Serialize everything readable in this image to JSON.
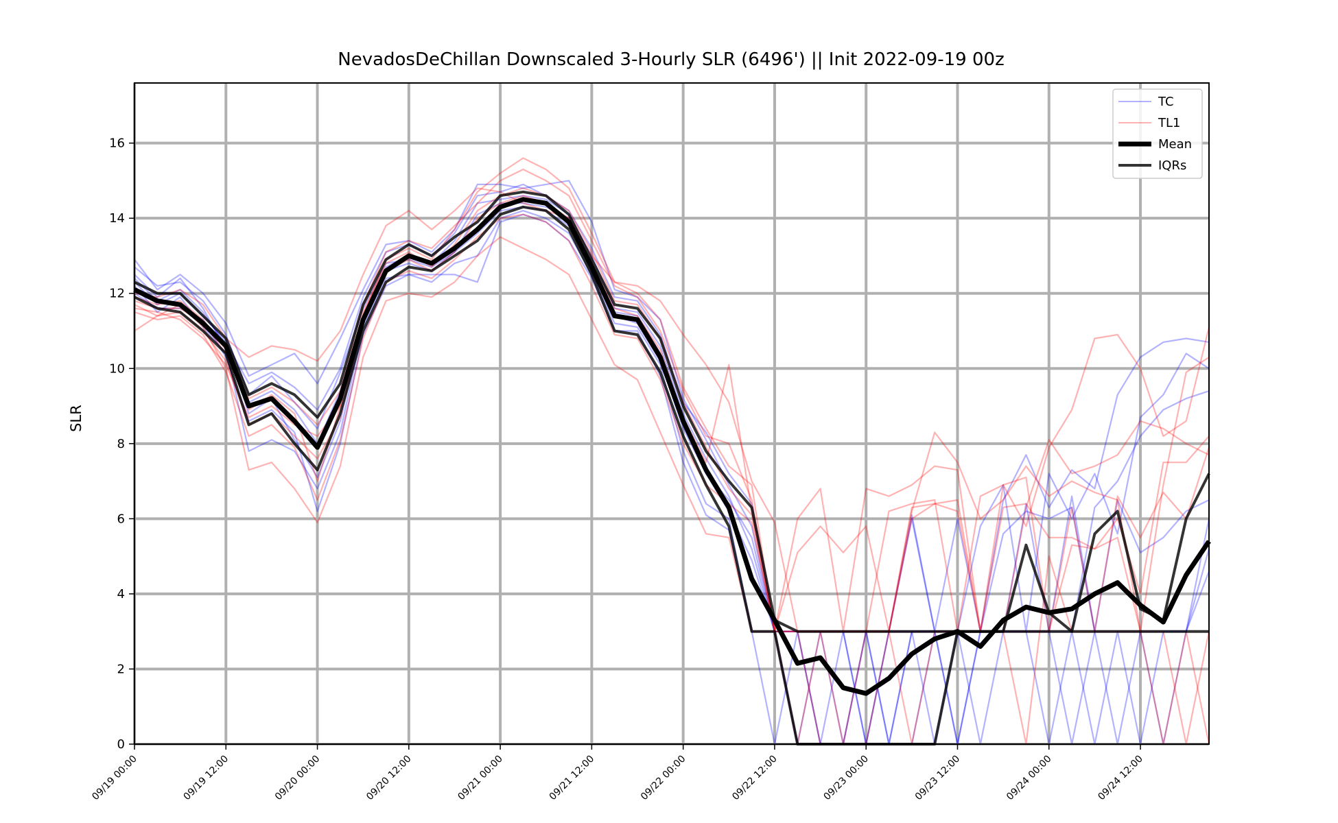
{
  "chart_data": {
    "type": "line",
    "title": "NevadosDeChillan Downscaled 3-Hourly SLR (6496') || Init 2022-09-19 00z",
    "xlabel": "",
    "ylabel": "SLR",
    "ylim": [
      0,
      17.6
    ],
    "yticks": [
      "0",
      "2",
      "4",
      "6",
      "8",
      "10",
      "12",
      "14",
      "16"
    ],
    "x_start": "09/19 00:00",
    "x_step_hours": 3,
    "xticks": [
      "09/19 00:00",
      "09/19 12:00",
      "09/20 00:00",
      "09/20 12:00",
      "09/21 00:00",
      "09/21 12:00",
      "09/22 00:00",
      "09/22 12:00",
      "09/23 00:00",
      "09/23 12:00",
      "09/24 00:00",
      "09/24 12:00"
    ],
    "grid": true,
    "legend_position": "top-right",
    "legend": [
      {
        "label": "TC",
        "color": "#0000ff",
        "alpha": 0.3,
        "width": 2
      },
      {
        "label": "TL1",
        "color": "#ff0000",
        "alpha": 0.3,
        "width": 2
      },
      {
        "label": "Mean",
        "color": "#000000",
        "alpha": 1,
        "width": 7
      },
      {
        "label": "IQRs",
        "color": "#000000",
        "alpha": 0.8,
        "width": 4
      }
    ],
    "series": [
      {
        "name": "Mean",
        "color": "#000000",
        "values": [
          12.1,
          11.8,
          11.7,
          11.2,
          10.6,
          9.0,
          9.2,
          8.6,
          7.9,
          9.2,
          11.3,
          12.6,
          13.0,
          12.8,
          13.2,
          13.7,
          14.3,
          14.5,
          14.4,
          13.9,
          12.7,
          11.4,
          11.3,
          10.3,
          8.6,
          7.3,
          6.3,
          4.4,
          3.3,
          2.15,
          2.3,
          1.5,
          1.35,
          1.75,
          2.4,
          2.8,
          3.0,
          2.6,
          3.3,
          3.65,
          3.5,
          3.6,
          4.0,
          4.3,
          3.7,
          3.25,
          4.5,
          5.4
        ]
      },
      {
        "name": "IQR upper",
        "color": "#000000",
        "values": [
          12.3,
          12.0,
          12.0,
          11.4,
          10.8,
          9.3,
          9.6,
          9.3,
          8.7,
          9.6,
          11.7,
          12.9,
          13.3,
          13.0,
          13.5,
          13.9,
          14.6,
          14.7,
          14.6,
          14.1,
          12.9,
          11.7,
          11.6,
          10.8,
          9.0,
          7.8,
          7.0,
          6.3,
          3.3,
          3.0,
          3.0,
          3.0,
          3.0,
          3.0,
          3.0,
          3.0,
          3.0,
          3.0,
          3.0,
          5.3,
          3.5,
          3.0,
          5.6,
          6.2,
          3.6,
          3.3,
          6.0,
          7.2
        ]
      },
      {
        "name": "IQR lower",
        "color": "#000000",
        "values": [
          11.9,
          11.6,
          11.5,
          11.0,
          10.4,
          8.5,
          8.8,
          8.0,
          7.3,
          8.8,
          11.0,
          12.3,
          12.7,
          12.6,
          13.0,
          13.4,
          14.1,
          14.3,
          14.2,
          13.7,
          12.5,
          11.0,
          10.9,
          9.9,
          8.2,
          6.9,
          5.8,
          3.0,
          3.0,
          0.0,
          0.0,
          0.0,
          0.0,
          0.0,
          0.0,
          0.0,
          3.0,
          3.0,
          3.0,
          3.0,
          3.0,
          3.0,
          3.0,
          3.0,
          3.0,
          3.0,
          3.0,
          3.0
        ]
      },
      {
        "name": "TC",
        "color": "#0000ff",
        "values": [
          12.9,
          12.1,
          12.5,
          12.0,
          11.2,
          9.8,
          10.1,
          10.4,
          9.6,
          10.8,
          12.1,
          13.3,
          13.4,
          13.1,
          13.7,
          14.9,
          14.9,
          14.8,
          14.9,
          15.0,
          13.9,
          12.1,
          11.9,
          11.3,
          9.2,
          8.1,
          6.9,
          5.8,
          3.0,
          3.0,
          3.0,
          0.0,
          3.0,
          3.0,
          6.0,
          3.0,
          6.0,
          3.0,
          6.5,
          7.7,
          6.3,
          7.3,
          6.8,
          9.3,
          10.3,
          10.7,
          10.8,
          10.7
        ]
      },
      {
        "name": "TC",
        "color": "#0000ff",
        "values": [
          12.7,
          12.2,
          12.3,
          11.8,
          10.9,
          9.3,
          9.8,
          9.1,
          8.4,
          9.9,
          11.6,
          12.8,
          12.9,
          12.7,
          13.1,
          14.1,
          14.4,
          14.4,
          14.3,
          14.0,
          12.8,
          11.5,
          11.4,
          10.4,
          8.6,
          7.2,
          6.2,
          4.9,
          3.0,
          0.0,
          0.0,
          3.0,
          3.0,
          3.0,
          6.1,
          3.0,
          3.0,
          5.8,
          6.9,
          3.0,
          7.2,
          6.0,
          7.2,
          5.6,
          8.7,
          9.3,
          10.4,
          10.0
        ]
      },
      {
        "name": "TC",
        "color": "#0000ff",
        "values": [
          12.5,
          11.9,
          12.4,
          11.6,
          10.5,
          7.8,
          8.1,
          7.8,
          6.8,
          8.3,
          11.1,
          12.4,
          12.5,
          12.5,
          12.5,
          12.3,
          13.9,
          14.1,
          13.9,
          13.4,
          12.4,
          11.0,
          11.0,
          9.8,
          7.5,
          6.1,
          5.7,
          3.0,
          0.0,
          3.0,
          0.0,
          0.0,
          3.0,
          0.0,
          3.0,
          3.0,
          0.0,
          3.0,
          3.0,
          3.0,
          0.0,
          3.0,
          0.0,
          3.0,
          0.0,
          3.0,
          3.0,
          6.0
        ]
      },
      {
        "name": "TC",
        "color": "#0000ff",
        "values": [
          12.3,
          11.7,
          12.0,
          11.4,
          10.7,
          9.6,
          9.9,
          9.5,
          8.9,
          10.0,
          11.9,
          13.1,
          13.3,
          13.0,
          13.6,
          14.6,
          14.7,
          14.9,
          14.6,
          14.2,
          13.2,
          11.9,
          11.8,
          10.9,
          9.1,
          8.3,
          7.2,
          6.4,
          3.0,
          3.0,
          3.0,
          3.0,
          0.0,
          3.0,
          3.0,
          3.0,
          0.0,
          3.0,
          3.0,
          6.4,
          3.0,
          3.0,
          6.3,
          7.0,
          8.2,
          8.9,
          9.2,
          9.4
        ]
      },
      {
        "name": "TC",
        "color": "#0000ff",
        "values": [
          12.2,
          11.5,
          11.9,
          11.1,
          10.4,
          9.1,
          9.4,
          8.9,
          8.0,
          9.4,
          11.4,
          12.6,
          12.8,
          12.6,
          13.1,
          13.6,
          14.2,
          14.3,
          14.2,
          13.8,
          12.6,
          11.4,
          11.2,
          10.2,
          8.4,
          7.2,
          6.5,
          5.5,
          3.0,
          3.0,
          0.0,
          0.0,
          0.0,
          3.0,
          3.0,
          0.0,
          3.0,
          3.0,
          3.0,
          3.0,
          3.0,
          0.0,
          3.0,
          3.0,
          3.0,
          0.0,
          3.0,
          5.2
        ]
      },
      {
        "name": "TC",
        "color": "#0000ff",
        "values": [
          12.0,
          11.6,
          11.6,
          11.3,
          10.3,
          8.6,
          8.9,
          8.3,
          6.2,
          8.0,
          10.9,
          12.2,
          12.5,
          12.3,
          12.8,
          13.0,
          14.0,
          14.2,
          14.0,
          13.6,
          12.5,
          11.2,
          11.1,
          10.1,
          7.8,
          6.4,
          6.0,
          3.0,
          3.0,
          3.0,
          3.0,
          3.0,
          3.0,
          0.0,
          3.0,
          3.0,
          3.0,
          0.0,
          3.0,
          3.0,
          3.0,
          6.6,
          3.0,
          0.0,
          3.0,
          3.0,
          3.0,
          4.6
        ]
      },
      {
        "name": "TC",
        "color": "#0000ff",
        "values": [
          12.4,
          11.8,
          12.1,
          11.5,
          10.6,
          8.8,
          9.2,
          8.1,
          7.1,
          8.6,
          11.2,
          12.7,
          13.0,
          12.8,
          13.4,
          14.4,
          14.5,
          14.6,
          14.5,
          14.1,
          13.0,
          11.6,
          11.5,
          10.6,
          8.8,
          7.6,
          6.6,
          5.2,
          3.0,
          0.0,
          3.0,
          3.0,
          0.0,
          0.0,
          0.0,
          3.0,
          3.0,
          3.0,
          5.6,
          6.2,
          6.0,
          6.3,
          3.0,
          6.5,
          5.1,
          5.5,
          6.2,
          6.5
        ]
      },
      {
        "name": "TL1",
        "color": "#ff0000",
        "values": [
          11.0,
          11.4,
          11.7,
          11.1,
          10.0,
          7.3,
          7.5,
          6.8,
          5.9,
          7.4,
          10.3,
          11.8,
          12.0,
          11.9,
          12.3,
          13.0,
          13.5,
          13.2,
          12.9,
          12.5,
          11.3,
          10.1,
          9.7,
          8.3,
          6.9,
          5.6,
          5.5,
          3.0,
          3.0,
          5.1,
          5.8,
          5.1,
          5.8,
          3.0,
          6.3,
          6.4,
          6.5,
          3.0,
          6.9,
          5.8,
          7.9,
          8.9,
          10.8,
          10.9,
          10.0,
          8.2,
          8.6,
          11.1
        ]
      },
      {
        "name": "TL1",
        "color": "#ff0000",
        "values": [
          11.5,
          11.3,
          11.4,
          10.9,
          9.9,
          8.2,
          8.5,
          7.9,
          6.5,
          8.1,
          10.8,
          12.3,
          12.6,
          12.4,
          12.9,
          13.5,
          14.0,
          14.1,
          13.9,
          13.4,
          12.2,
          10.9,
          10.8,
          9.7,
          8.0,
          6.9,
          6.4,
          5.9,
          3.0,
          6.0,
          6.8,
          3.0,
          6.8,
          6.6,
          6.9,
          7.4,
          7.3,
          3.0,
          6.3,
          6.4,
          5.5,
          5.5,
          5.2,
          6.0,
          4.0,
          7.5,
          7.5,
          8.2
        ]
      },
      {
        "name": "TL1",
        "color": "#ff0000",
        "values": [
          11.6,
          11.5,
          11.3,
          10.8,
          10.1,
          8.7,
          9.0,
          8.5,
          8.2,
          9.0,
          11.4,
          12.9,
          13.2,
          12.9,
          13.7,
          14.7,
          15.2,
          15.6,
          15.3,
          14.8,
          13.6,
          12.3,
          12.0,
          11.3,
          9.5,
          8.4,
          7.4,
          6.9,
          3.0,
          3.0,
          0.0,
          0.0,
          3.0,
          6.2,
          6.4,
          6.5,
          3.0,
          6.6,
          6.9,
          7.1,
          3.0,
          5.3,
          5.2,
          5.5,
          3.0,
          0.0,
          3.0,
          0.0
        ]
      },
      {
        "name": "TL1",
        "color": "#ff0000",
        "values": [
          11.8,
          11.6,
          11.6,
          11.2,
          10.4,
          9.2,
          9.5,
          9.1,
          8.5,
          9.4,
          11.7,
          13.1,
          13.4,
          13.2,
          13.8,
          14.4,
          15.0,
          15.3,
          15.0,
          14.6,
          13.4,
          12.2,
          11.9,
          11.0,
          9.4,
          8.2,
          8.0,
          6.5,
          3.0,
          3.0,
          3.0,
          3.0,
          3.0,
          3.0,
          6.2,
          8.3,
          7.5,
          6.0,
          6.5,
          7.4,
          6.6,
          7.0,
          6.7,
          6.5,
          3.0,
          6.9,
          9.9,
          10.3
        ]
      },
      {
        "name": "TL1",
        "color": "#ff0000",
        "values": [
          12.0,
          11.9,
          12.1,
          11.7,
          10.8,
          10.3,
          10.6,
          10.5,
          10.2,
          11.0,
          12.5,
          13.8,
          14.2,
          13.7,
          14.2,
          14.8,
          14.7,
          14.4,
          14.2,
          14.0,
          13.0,
          12.3,
          12.2,
          11.8,
          10.9,
          10.1,
          9.1,
          7.0,
          5.9,
          3.0,
          3.0,
          3.0,
          3.0,
          3.0,
          6.0,
          6.4,
          6.2,
          3.0,
          3.0,
          6.3,
          8.1,
          7.2,
          7.4,
          7.7,
          8.6,
          8.4,
          8.0,
          7.7
        ]
      },
      {
        "name": "TL1",
        "color": "#ff0000",
        "values": [
          11.7,
          11.4,
          11.5,
          11.0,
          10.2,
          8.5,
          8.8,
          8.2,
          7.6,
          8.7,
          11.3,
          12.6,
          12.9,
          12.6,
          13.1,
          14.0,
          14.4,
          14.6,
          14.4,
          14.0,
          12.8,
          11.6,
          11.4,
          10.5,
          8.7,
          7.5,
          10.1,
          6.2,
          3.0,
          0.0,
          3.0,
          0.0,
          0.0,
          3.0,
          3.0,
          3.0,
          3.0,
          3.0,
          3.0,
          3.0,
          3.0,
          6.3,
          3.0,
          6.6,
          5.5,
          6.7,
          6.0,
          7.9
        ]
      },
      {
        "name": "TL1",
        "color": "#ff0000",
        "values": [
          11.9,
          11.7,
          11.8,
          11.3,
          10.5,
          8.9,
          9.3,
          8.8,
          7.0,
          9.0,
          11.5,
          12.8,
          13.1,
          12.7,
          13.3,
          14.2,
          14.6,
          14.8,
          14.6,
          14.2,
          13.1,
          11.8,
          11.7,
          10.8,
          9.1,
          7.9,
          6.8,
          6.1,
          3.0,
          3.0,
          3.0,
          3.0,
          3.0,
          3.0,
          0.0,
          3.0,
          3.0,
          3.0,
          3.0,
          0.0,
          5.0,
          3.0,
          3.0,
          3.0,
          3.0,
          3.0,
          0.0,
          3.0
        ]
      }
    ]
  }
}
